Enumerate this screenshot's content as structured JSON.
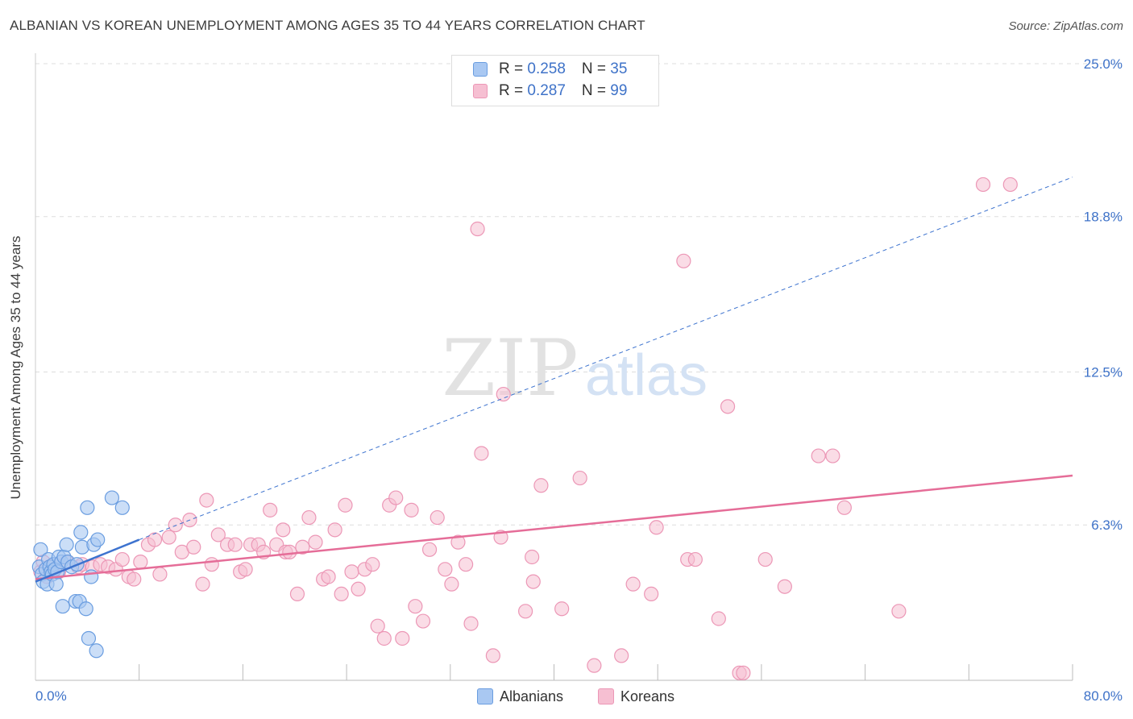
{
  "title": "ALBANIAN VS KOREAN UNEMPLOYMENT AMONG AGES 35 TO 44 YEARS CORRELATION CHART",
  "source": "Source: ZipAtlas.com",
  "watermark": {
    "zip": "ZIP",
    "atlas": "atlas"
  },
  "legend": {
    "rows": [
      {
        "r_label": "R = ",
        "r_value": "0.258",
        "n_label": "N = ",
        "n_value": "35"
      },
      {
        "r_label": "R = ",
        "r_value": "0.287",
        "n_label": "N = ",
        "n_value": "99"
      }
    ]
  },
  "bottom_legend": [
    "Albanians",
    "Koreans"
  ],
  "colors": {
    "albanian_fill": "#a9c8f2",
    "albanian_stroke": "#6a9de0",
    "albanian_line": "#3d73cf",
    "korean_fill": "#f6bfd2",
    "korean_stroke": "#ec97b6",
    "korean_line": "#e56d98",
    "tick_label": "#3e72c8",
    "grid": "#dddddd"
  },
  "chart_data": {
    "type": "scatter",
    "title": "ALBANIAN VS KOREAN UNEMPLOYMENT AMONG AGES 35 TO 44 YEARS CORRELATION CHART",
    "xlabel": "",
    "ylabel": "Unemployment Among Ages 35 to 44 years",
    "xlim": [
      0,
      80
    ],
    "ylim": [
      0,
      25
    ],
    "x_tick_labels": [
      "0.0%",
      "80.0%"
    ],
    "y_ticks": [
      6.3,
      12.5,
      18.8,
      25.0
    ],
    "y_tick_labels": [
      "6.3%",
      "12.5%",
      "18.8%",
      "25.0%"
    ],
    "grid": "horizontal dashed",
    "series": [
      {
        "name": "Albanians",
        "R": 0.258,
        "N": 35,
        "trend": {
          "x": [
            0,
            8
          ],
          "y": [
            4.0,
            5.7
          ],
          "style": "solid"
        },
        "trend_extended": {
          "x": [
            8,
            80
          ],
          "y": [
            5.7,
            20.4
          ],
          "style": "dashed"
        },
        "points": [
          [
            0.3,
            4.6
          ],
          [
            0.4,
            5.3
          ],
          [
            0.5,
            4.3
          ],
          [
            0.6,
            4.0
          ],
          [
            0.8,
            4.5
          ],
          [
            0.9,
            3.9
          ],
          [
            1.0,
            4.9
          ],
          [
            1.1,
            4.6
          ],
          [
            1.2,
            4.4
          ],
          [
            1.3,
            4.3
          ],
          [
            1.4,
            4.7
          ],
          [
            1.5,
            4.5
          ],
          [
            1.6,
            3.9
          ],
          [
            1.7,
            4.4
          ],
          [
            1.8,
            5.0
          ],
          [
            2.0,
            4.8
          ],
          [
            2.1,
            3.0
          ],
          [
            2.2,
            5.0
          ],
          [
            2.4,
            5.5
          ],
          [
            2.5,
            4.8
          ],
          [
            2.8,
            4.6
          ],
          [
            3.1,
            3.2
          ],
          [
            3.2,
            4.7
          ],
          [
            3.4,
            3.2
          ],
          [
            3.5,
            6.0
          ],
          [
            3.6,
            5.4
          ],
          [
            3.9,
            2.9
          ],
          [
            4.0,
            7.0
          ],
          [
            4.1,
            1.7
          ],
          [
            4.3,
            4.2
          ],
          [
            4.5,
            5.5
          ],
          [
            4.7,
            1.2
          ],
          [
            4.8,
            5.7
          ],
          [
            5.9,
            7.4
          ],
          [
            6.7,
            7.0
          ]
        ]
      },
      {
        "name": "Koreans",
        "R": 0.287,
        "N": 99,
        "trend": {
          "x": [
            0,
            80
          ],
          "y": [
            4.1,
            8.3
          ],
          "style": "solid"
        },
        "points": [
          [
            0.4,
            4.4
          ],
          [
            0.6,
            4.8
          ],
          [
            0.9,
            4.2
          ],
          [
            1.1,
            4.6
          ],
          [
            1.5,
            4.7
          ],
          [
            1.8,
            4.4
          ],
          [
            2.4,
            4.8
          ],
          [
            3.3,
            4.6
          ],
          [
            3.6,
            4.7
          ],
          [
            4.4,
            4.6
          ],
          [
            5.0,
            4.7
          ],
          [
            5.6,
            4.6
          ],
          [
            6.2,
            4.5
          ],
          [
            6.7,
            4.9
          ],
          [
            7.2,
            4.2
          ],
          [
            7.6,
            4.1
          ],
          [
            8.1,
            4.8
          ],
          [
            8.7,
            5.5
          ],
          [
            9.2,
            5.7
          ],
          [
            9.6,
            4.3
          ],
          [
            10.3,
            5.8
          ],
          [
            10.8,
            6.3
          ],
          [
            11.3,
            5.2
          ],
          [
            11.9,
            6.5
          ],
          [
            12.2,
            5.4
          ],
          [
            12.9,
            3.9
          ],
          [
            13.2,
            7.3
          ],
          [
            13.6,
            4.7
          ],
          [
            14.1,
            5.9
          ],
          [
            14.8,
            5.5
          ],
          [
            15.4,
            5.5
          ],
          [
            15.8,
            4.4
          ],
          [
            16.2,
            4.5
          ],
          [
            16.6,
            5.5
          ],
          [
            17.2,
            5.5
          ],
          [
            17.6,
            5.2
          ],
          [
            18.1,
            6.9
          ],
          [
            18.6,
            5.5
          ],
          [
            19.1,
            6.1
          ],
          [
            19.3,
            5.2
          ],
          [
            19.6,
            5.2
          ],
          [
            20.2,
            3.5
          ],
          [
            20.6,
            5.4
          ],
          [
            21.1,
            6.6
          ],
          [
            21.6,
            5.6
          ],
          [
            22.2,
            4.1
          ],
          [
            22.6,
            4.2
          ],
          [
            23.1,
            6.1
          ],
          [
            23.6,
            3.5
          ],
          [
            23.9,
            7.1
          ],
          [
            24.4,
            4.4
          ],
          [
            24.9,
            3.7
          ],
          [
            25.4,
            4.5
          ],
          [
            26.0,
            4.7
          ],
          [
            26.4,
            2.2
          ],
          [
            26.9,
            1.7
          ],
          [
            27.3,
            7.1
          ],
          [
            27.8,
            7.4
          ],
          [
            28.3,
            1.7
          ],
          [
            29.0,
            6.9
          ],
          [
            29.3,
            3.0
          ],
          [
            29.9,
            2.4
          ],
          [
            30.4,
            5.3
          ],
          [
            31.0,
            6.6
          ],
          [
            31.6,
            4.5
          ],
          [
            32.1,
            3.9
          ],
          [
            32.6,
            5.6
          ],
          [
            33.2,
            4.7
          ],
          [
            33.6,
            2.3
          ],
          [
            34.1,
            18.3
          ],
          [
            34.4,
            9.2
          ],
          [
            35.3,
            1.0
          ],
          [
            36.1,
            11.6
          ],
          [
            35.9,
            5.8
          ],
          [
            37.8,
            2.8
          ],
          [
            38.3,
            5.0
          ],
          [
            38.4,
            4.0
          ],
          [
            39.0,
            7.9
          ],
          [
            40.6,
            2.9
          ],
          [
            42.0,
            8.2
          ],
          [
            43.1,
            0.6
          ],
          [
            45.2,
            1.0
          ],
          [
            46.1,
            3.9
          ],
          [
            47.5,
            3.5
          ],
          [
            47.9,
            6.2
          ],
          [
            50.0,
            17.0
          ],
          [
            50.3,
            4.9
          ],
          [
            50.9,
            4.9
          ],
          [
            52.7,
            2.5
          ],
          [
            53.4,
            11.1
          ],
          [
            54.3,
            0.3
          ],
          [
            54.6,
            0.3
          ],
          [
            56.3,
            4.9
          ],
          [
            57.8,
            3.8
          ],
          [
            60.4,
            9.1
          ],
          [
            61.5,
            9.1
          ],
          [
            62.4,
            7.0
          ],
          [
            66.6,
            2.8
          ],
          [
            73.1,
            20.1
          ],
          [
            75.2,
            20.1
          ]
        ]
      }
    ]
  }
}
